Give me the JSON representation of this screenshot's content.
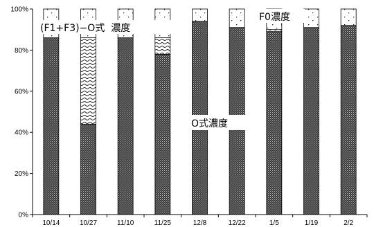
{
  "chart_data": {
    "type": "bar",
    "stacked": true,
    "percent": true,
    "categories": [
      "10/14",
      "10/27",
      "11/10",
      "11/25",
      "12/8",
      "12/22",
      "1/5",
      "1/19",
      "2/2"
    ],
    "series": [
      {
        "name": "O式濃度",
        "values": [
          86,
          44,
          86,
          78,
          94,
          91,
          89,
          91,
          92
        ]
      },
      {
        "name": "(F1+F3)−O式 濃度",
        "values": [
          0,
          42,
          0,
          8,
          0,
          0,
          1,
          0,
          0
        ]
      },
      {
        "name": "F0濃度",
        "values": [
          14,
          14,
          14,
          14,
          6,
          9,
          10,
          9,
          8
        ]
      }
    ],
    "ylim": [
      0,
      100
    ],
    "yticks": [
      "0%",
      "20%",
      "40%",
      "60%",
      "80%",
      "100%"
    ],
    "grid": false,
    "annotations": [
      {
        "text": "(F1+F3)−O式  濃度"
      },
      {
        "text": "F0濃度"
      },
      {
        "text": "O式濃度"
      }
    ]
  }
}
